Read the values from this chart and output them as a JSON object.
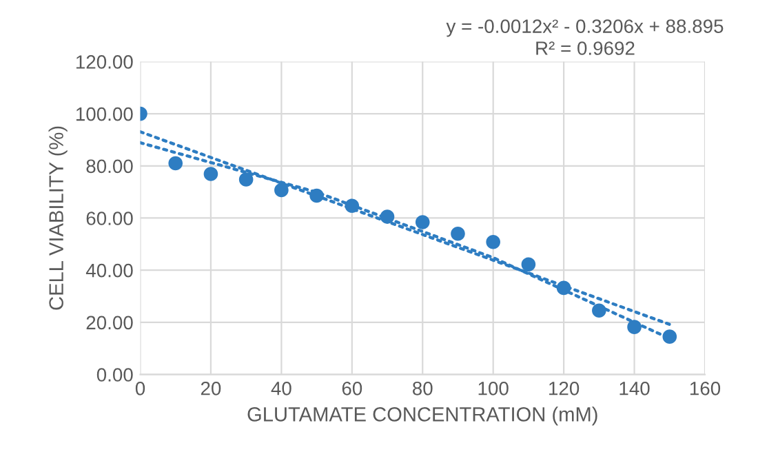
{
  "chart_data": {
    "type": "scatter",
    "xlabel": "GLUTAMATE CONCENTRATION (mM)",
    "ylabel": "CELL VIABILITY (%)",
    "annotations": [
      "y = -0.0012x² - 0.3206x + 88.895\nR² = 0.9692"
    ],
    "x": [
      0,
      10,
      20,
      30,
      40,
      50,
      60,
      70,
      80,
      90,
      100,
      110,
      120,
      130,
      140,
      150
    ],
    "series": [
      {
        "color": "#2e7dc2",
        "marker": "circle",
        "values": [
          100,
          81,
          76.9,
          74.8,
          70.7,
          68.6,
          64.7,
          60.5,
          58.4,
          54,
          50.8,
          42.2,
          33.2,
          24.5,
          18.2,
          14.5
        ]
      },
      {
        "type": "line",
        "color": "#2e7dc2",
        "line_style": "dotted",
        "marker": "none",
        "x": [
          0,
          150
        ],
        "values": [
          93.1,
          19.2
        ]
      },
      {
        "type": "line",
        "color": "#2e7dc2",
        "line_style": "dotted",
        "marker": "none",
        "x": [
          0,
          50,
          100,
          150
        ],
        "values": [
          88.9,
          69.9,
          44.8,
          13.8
        ]
      }
    ],
    "xlim": [
      0,
      160
    ],
    "xticks": [
      0,
      20,
      40,
      60,
      80,
      100,
      120,
      140,
      160
    ],
    "ylim": [
      0,
      120
    ],
    "yticks": [
      {
        "value": 0,
        "label": "0.00"
      },
      {
        "value": 20,
        "label": "20.00"
      },
      {
        "value": 40,
        "label": "40.00"
      },
      {
        "value": 60,
        "label": "60.00"
      },
      {
        "value": 80,
        "label": "80.00"
      },
      {
        "value": 100,
        "label": "100.00"
      },
      {
        "value": 120,
        "label": "120.00"
      }
    ],
    "grid": true,
    "legend": false
  }
}
